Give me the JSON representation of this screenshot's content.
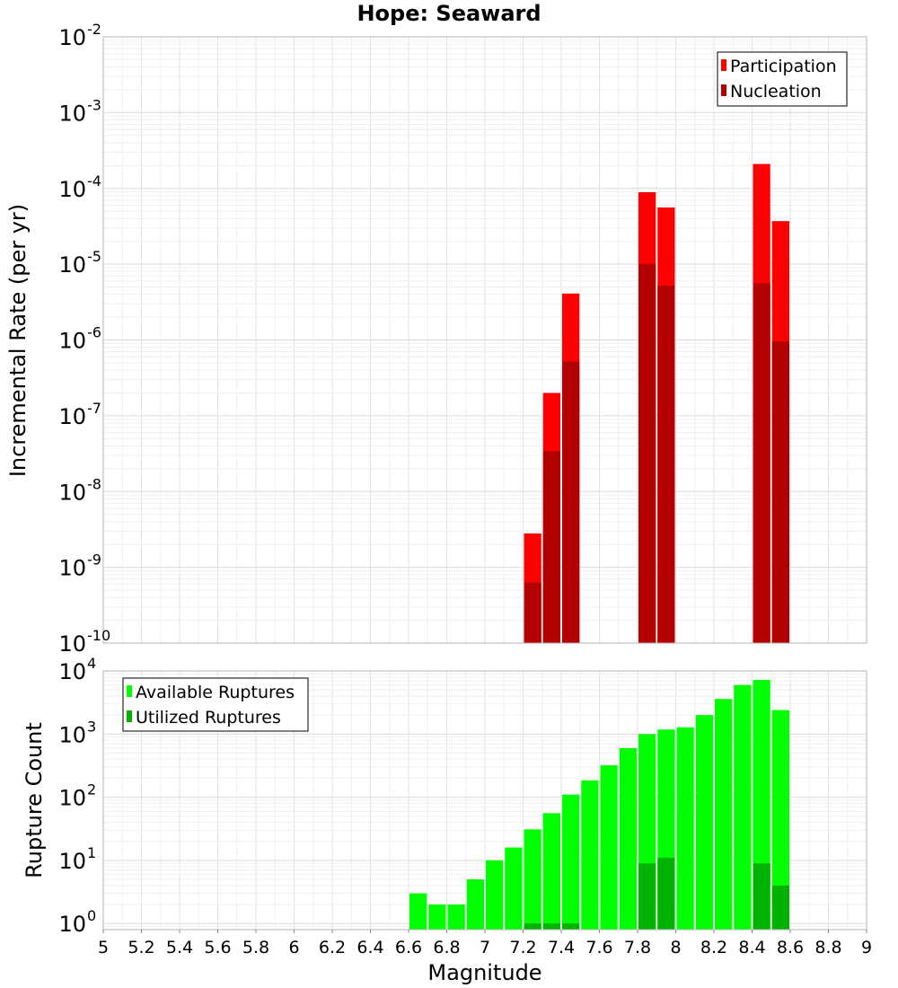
{
  "chart_data": [
    {
      "type": "bar",
      "title": "Hope: Seaward",
      "ylabel": "Incremental Rate (per yr)",
      "xlabel": "",
      "yscale": "log",
      "ylim": [
        1e-10,
        0.01
      ],
      "xlim": [
        5,
        9
      ],
      "ytick_exponents": [
        "-10",
        "-9",
        "-8",
        "-7",
        "-6",
        "-5",
        "-4",
        "-3",
        "-2"
      ],
      "grid": true,
      "legend_position": "top-right",
      "bar_width": 0.1,
      "series": [
        {
          "name": "Participation",
          "color": "#ff0000",
          "x": [
            7.25,
            7.35,
            7.45,
            7.85,
            7.95,
            8.45,
            8.55
          ],
          "values": [
            2.8e-09,
            2e-07,
            4.1e-06,
            8.9e-05,
            5.6e-05,
            0.00021,
            3.7e-05
          ]
        },
        {
          "name": "Nucleation",
          "color": "#b30000",
          "x": [
            7.25,
            7.35,
            7.45,
            7.85,
            7.95,
            8.45,
            8.55
          ],
          "values": [
            6.3e-10,
            3.4e-08,
            5.2e-07,
            1e-05,
            5.2e-06,
            5.6e-06,
            9.6e-07
          ]
        }
      ]
    },
    {
      "type": "bar",
      "title": "",
      "ylabel": "Rupture Count",
      "xlabel": "Magnitude",
      "yscale": "log",
      "ylim": [
        0.8,
        10000.0
      ],
      "xlim": [
        5,
        9
      ],
      "ytick_exponents": [
        "0",
        "1",
        "2",
        "3",
        "4"
      ],
      "x_ticks": [
        "5",
        "5.2",
        "5.4",
        "5.6",
        "5.8",
        "6",
        "6.2",
        "6.4",
        "6.6",
        "6.8",
        "7",
        "7.2",
        "7.4",
        "7.6",
        "7.8",
        "8",
        "8.2",
        "8.4",
        "8.6",
        "8.8",
        "9"
      ],
      "grid": true,
      "legend_position": "top-left",
      "bar_width": 0.1,
      "series": [
        {
          "name": "Available Ruptures",
          "color": "#00ff00",
          "x": [
            6.65,
            6.75,
            6.85,
            6.95,
            7.05,
            7.15,
            7.25,
            7.35,
            7.45,
            7.55,
            7.65,
            7.75,
            7.85,
            7.95,
            8.05,
            8.15,
            8.25,
            8.35,
            8.45,
            8.55
          ],
          "values": [
            3,
            2,
            2,
            5,
            10,
            16,
            31,
            56,
            110,
            185,
            320,
            600,
            1000,
            1180,
            1280,
            2000,
            3600,
            6000,
            7200,
            2400
          ]
        },
        {
          "name": "Utilized Ruptures",
          "color": "#00b300",
          "x": [
            7.25,
            7.35,
            7.45,
            7.85,
            7.95,
            8.45,
            8.55
          ],
          "values": [
            1,
            1,
            1,
            9,
            11,
            9,
            4
          ]
        }
      ]
    }
  ]
}
